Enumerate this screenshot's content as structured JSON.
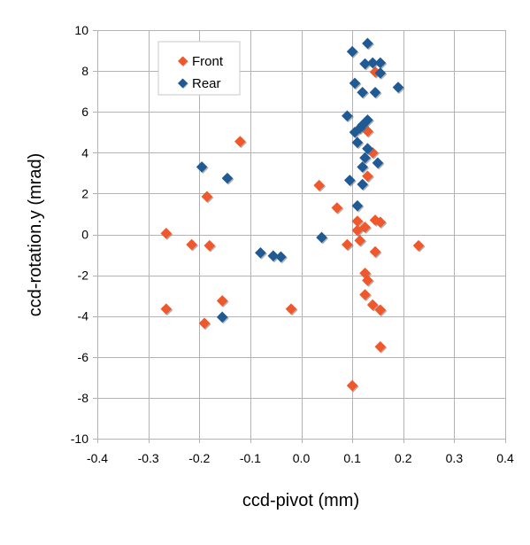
{
  "chart_data": {
    "type": "scatter",
    "xlabel": "ccd-pivot (mm)",
    "ylabel": "ccd-rotation.y   (mrad)",
    "xlim": [
      -0.4,
      0.4
    ],
    "ylim": [
      -10,
      10
    ],
    "x_ticks": [
      -0.4,
      -0.3,
      -0.2,
      -0.1,
      0.0,
      0.1,
      0.2,
      0.3,
      0.4
    ],
    "y_ticks": [
      -10,
      -8,
      -6,
      -4,
      -2,
      0,
      2,
      4,
      6,
      8,
      10
    ],
    "x_tick_labels": [
      "-0.4",
      "-0.3",
      "-0.2",
      "-0.1",
      "0.0",
      "0.1",
      "0.2",
      "0.3",
      "0.4"
    ],
    "y_tick_labels": [
      "-10",
      "-8",
      "-6",
      "-4",
      "-2",
      "0",
      "2",
      "4",
      "6",
      "8",
      "10"
    ],
    "grid": true,
    "legend_position": "top-left",
    "series": [
      {
        "name": "Front",
        "color": "#f0582b",
        "marker": "diamond",
        "points": [
          [
            -0.12,
            4.55
          ],
          [
            -0.185,
            1.85
          ],
          [
            -0.265,
            0.05
          ],
          [
            -0.215,
            -0.5
          ],
          [
            -0.18,
            -0.55
          ],
          [
            -0.265,
            -3.65
          ],
          [
            -0.155,
            -3.25
          ],
          [
            -0.19,
            -4.35
          ],
          [
            -0.02,
            -3.65
          ],
          [
            0.035,
            2.4
          ],
          [
            0.07,
            1.3
          ],
          [
            0.09,
            -0.5
          ],
          [
            0.1,
            -7.4
          ],
          [
            0.13,
            5.05
          ],
          [
            0.14,
            4.0
          ],
          [
            0.145,
            7.95
          ],
          [
            0.13,
            2.85
          ],
          [
            0.11,
            0.65
          ],
          [
            0.125,
            0.35
          ],
          [
            0.11,
            0.2
          ],
          [
            0.115,
            -0.3
          ],
          [
            0.145,
            0.7
          ],
          [
            0.155,
            0.6
          ],
          [
            0.145,
            -0.85
          ],
          [
            0.125,
            -1.9
          ],
          [
            0.13,
            -2.25
          ],
          [
            0.125,
            -2.95
          ],
          [
            0.14,
            -3.45
          ],
          [
            0.155,
            -3.7
          ],
          [
            0.155,
            -5.5
          ],
          [
            0.23,
            -0.55
          ]
        ]
      },
      {
        "name": "Rear",
        "color": "#1f5a94",
        "marker": "diamond",
        "points": [
          [
            -0.195,
            3.3
          ],
          [
            -0.145,
            2.75
          ],
          [
            -0.155,
            -4.05
          ],
          [
            -0.08,
            -0.9
          ],
          [
            -0.055,
            -1.05
          ],
          [
            -0.04,
            -1.1
          ],
          [
            0.04,
            -0.15
          ],
          [
            0.1,
            8.95
          ],
          [
            0.13,
            9.35
          ],
          [
            0.125,
            8.35
          ],
          [
            0.14,
            8.4
          ],
          [
            0.155,
            8.4
          ],
          [
            0.155,
            7.9
          ],
          [
            0.105,
            7.4
          ],
          [
            0.12,
            6.95
          ],
          [
            0.145,
            6.95
          ],
          [
            0.19,
            7.2
          ],
          [
            0.09,
            5.8
          ],
          [
            0.13,
            5.6
          ],
          [
            0.12,
            5.35
          ],
          [
            0.115,
            5.2
          ],
          [
            0.105,
            5.0
          ],
          [
            0.11,
            4.5
          ],
          [
            0.13,
            4.2
          ],
          [
            0.125,
            3.75
          ],
          [
            0.12,
            3.3
          ],
          [
            0.15,
            3.5
          ],
          [
            0.095,
            2.65
          ],
          [
            0.12,
            2.45
          ],
          [
            0.11,
            1.4
          ]
        ]
      }
    ]
  }
}
